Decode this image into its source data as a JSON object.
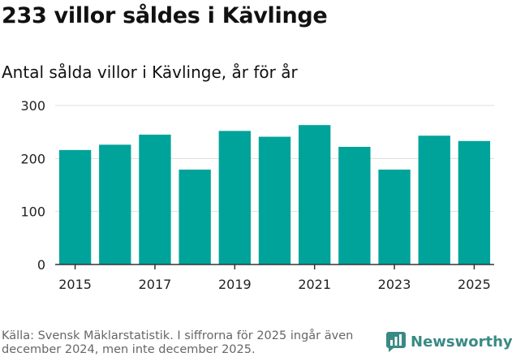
{
  "header": {
    "title": "233 villor såldes i Kävlinge",
    "subtitle": "Antal sålda villor i Kävlinge, år för år"
  },
  "footer": {
    "source": "Källa: Svensk Mäklarstatistik. I siffrorna för 2025 ingår även december 2024, men inte december 2025.",
    "brand": "Newsworthy",
    "brand_icon": "newsworthy-logo-icon"
  },
  "colors": {
    "bar": "#00a39a",
    "grid": "#dddddd",
    "axis": "#333333",
    "brand": "#3a8a84"
  },
  "chart_data": {
    "type": "bar",
    "categories": [
      "2015",
      "2016",
      "2017",
      "2018",
      "2019",
      "2020",
      "2021",
      "2022",
      "2023",
      "2024",
      "2025"
    ],
    "values": [
      216,
      226,
      245,
      179,
      252,
      241,
      263,
      222,
      179,
      243,
      233
    ],
    "xlabel": "",
    "ylabel": "",
    "ylim": [
      0,
      300
    ],
    "yticks": [
      0,
      100,
      200,
      300
    ],
    "xtick_labels": [
      "2015",
      "2017",
      "2019",
      "2021",
      "2023",
      "2025"
    ],
    "grid": true,
    "legend": "none"
  }
}
